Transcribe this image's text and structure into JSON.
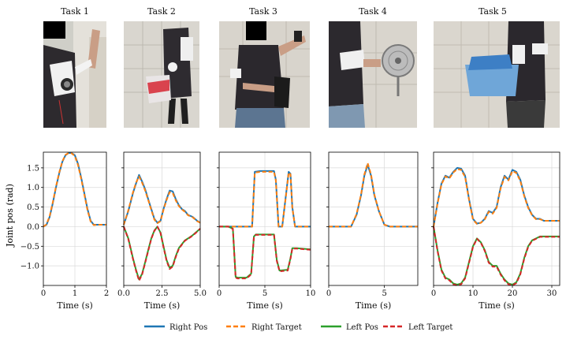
{
  "tasks": [
    {
      "title": "Task 1",
      "photo": "person raising right arm wearing arm exoskeleton, face redacted"
    },
    {
      "title": "Task 2",
      "photo": "person wearing dual-arm exoskeleton carrying a red and white box"
    },
    {
      "title": "Task 3",
      "photo": "person with one arm raised and one across the body, face redacted"
    },
    {
      "title": "Task 4",
      "photo": "person side view lifting an electric fan with exoskeleton"
    },
    {
      "title": "Task 5",
      "photo": "person carrying a blue laundry basket with exoskeleton"
    }
  ],
  "colors": {
    "right_pos": "#1f77b4",
    "right_target": "#ff7f0e",
    "left_pos": "#2ca02c",
    "left_target": "#d62728",
    "grid": "#d9d9d9"
  },
  "shared": {
    "ylabel": "Joint pos (rad)",
    "xlabel": "Time (s)",
    "ylim": [
      -1.5,
      1.9
    ],
    "yticks": [
      -1.0,
      -0.5,
      0.0,
      0.5,
      1.0,
      1.5
    ],
    "ytick_labels": [
      "−1.0",
      "−0.5",
      "0.0",
      "0.5",
      "1.0",
      "1.5"
    ]
  },
  "legend": [
    {
      "label": "Right Pos",
      "color": "#1f77b4",
      "dash": false
    },
    {
      "label": "Right Target",
      "color": "#ff7f0e",
      "dash": true
    },
    {
      "label": "Left Pos",
      "color": "#2ca02c",
      "dash": false
    },
    {
      "label": "Left Target",
      "color": "#d62728",
      "dash": true
    }
  ],
  "chart_data": [
    {
      "type": "line",
      "title": "Task 1",
      "xlabel": "Time (s)",
      "ylabel": "Joint pos (rad)",
      "xlim": [
        0,
        2
      ],
      "ylim": [
        -1.5,
        1.9
      ],
      "xticks": [
        0,
        1,
        2
      ],
      "xtick_labels": [
        "0",
        "1",
        "2"
      ],
      "grid": true,
      "series": [
        {
          "name": "Right Pos",
          "x": [
            0,
            0.1,
            0.2,
            0.3,
            0.4,
            0.5,
            0.6,
            0.7,
            0.8,
            0.9,
            1.0,
            1.1,
            1.2,
            1.3,
            1.4,
            1.5,
            1.6,
            1.7,
            1.8,
            1.9,
            2.0
          ],
          "y": [
            0,
            0.05,
            0.25,
            0.6,
            1.0,
            1.35,
            1.65,
            1.82,
            1.88,
            1.88,
            1.82,
            1.6,
            1.25,
            0.85,
            0.45,
            0.15,
            0.05,
            0.05,
            0.05,
            0.05,
            0.05
          ]
        },
        {
          "name": "Right Target",
          "x": [
            0,
            0.1,
            0.2,
            0.3,
            0.4,
            0.5,
            0.6,
            0.7,
            0.8,
            0.9,
            1.0,
            1.1,
            1.2,
            1.3,
            1.4,
            1.5,
            1.6,
            1.7,
            1.8,
            1.9,
            2.0
          ],
          "y": [
            0,
            0.06,
            0.27,
            0.62,
            1.02,
            1.37,
            1.66,
            1.83,
            1.88,
            1.87,
            1.8,
            1.57,
            1.22,
            0.82,
            0.42,
            0.13,
            0.04,
            0.05,
            0.05,
            0.05,
            0.05
          ]
        }
      ]
    },
    {
      "type": "line",
      "title": "Task 2",
      "xlabel": "Time (s)",
      "ylabel": "Joint pos (rad)",
      "xlim": [
        0,
        5
      ],
      "ylim": [
        -1.5,
        1.9
      ],
      "xticks": [
        0,
        2.5,
        5
      ],
      "xtick_labels": [
        "0.0",
        "2.5",
        "5.0"
      ],
      "grid": true,
      "series": [
        {
          "name": "Right Pos",
          "x": [
            0,
            0.3,
            0.6,
            0.8,
            1.0,
            1.2,
            1.4,
            1.6,
            1.8,
            2.0,
            2.2,
            2.4,
            2.6,
            2.8,
            3.0,
            3.2,
            3.4,
            3.6,
            3.8,
            4.0,
            4.2,
            4.5,
            4.8,
            5.0
          ],
          "y": [
            0.05,
            0.4,
            0.85,
            1.1,
            1.32,
            1.15,
            0.95,
            0.7,
            0.45,
            0.2,
            0.1,
            0.15,
            0.45,
            0.7,
            0.92,
            0.9,
            0.7,
            0.55,
            0.45,
            0.4,
            0.3,
            0.25,
            0.15,
            0.1
          ]
        },
        {
          "name": "Right Target",
          "x": [
            0,
            0.3,
            0.6,
            0.8,
            1.0,
            1.2,
            1.4,
            1.6,
            1.8,
            2.0,
            2.2,
            2.4,
            2.6,
            2.8,
            3.0,
            3.2,
            3.4,
            3.6,
            3.8,
            4.0,
            4.2,
            4.5,
            4.8,
            5.0
          ],
          "y": [
            0.05,
            0.42,
            0.87,
            1.12,
            1.28,
            1.12,
            0.92,
            0.68,
            0.43,
            0.18,
            0.09,
            0.14,
            0.43,
            0.68,
            0.88,
            0.86,
            0.67,
            0.53,
            0.44,
            0.38,
            0.29,
            0.24,
            0.14,
            0.1
          ]
        },
        {
          "name": "Left Pos",
          "x": [
            0,
            0.3,
            0.6,
            0.8,
            1.0,
            1.2,
            1.4,
            1.6,
            1.8,
            2.0,
            2.2,
            2.4,
            2.6,
            2.8,
            3.0,
            3.2,
            3.4,
            3.6,
            3.8,
            4.0,
            4.2,
            4.5,
            4.8,
            5.0
          ],
          "y": [
            0,
            -0.3,
            -0.8,
            -1.1,
            -1.35,
            -1.2,
            -0.9,
            -0.6,
            -0.3,
            -0.1,
            0,
            -0.15,
            -0.5,
            -0.85,
            -1.05,
            -1.0,
            -0.75,
            -0.55,
            -0.45,
            -0.35,
            -0.3,
            -0.22,
            -0.12,
            -0.05
          ]
        },
        {
          "name": "Left Target",
          "x": [
            0,
            0.3,
            0.6,
            0.8,
            1.0,
            1.2,
            1.4,
            1.6,
            1.8,
            2.0,
            2.2,
            2.4,
            2.6,
            2.8,
            3.0,
            3.2,
            3.4,
            3.6,
            3.8,
            4.0,
            4.2,
            4.5,
            4.8,
            5.0
          ],
          "y": [
            0,
            -0.32,
            -0.82,
            -1.12,
            -1.38,
            -1.22,
            -0.92,
            -0.62,
            -0.31,
            -0.11,
            0,
            -0.16,
            -0.52,
            -0.87,
            -1.08,
            -1.02,
            -0.77,
            -0.57,
            -0.46,
            -0.36,
            -0.31,
            -0.23,
            -0.13,
            -0.05
          ]
        }
      ]
    },
    {
      "type": "line",
      "title": "Task 3",
      "xlabel": "Time (s)",
      "ylabel": "Joint pos (rad)",
      "xlim": [
        0,
        10
      ],
      "ylim": [
        -1.5,
        1.9
      ],
      "xticks": [
        0,
        5,
        10
      ],
      "xtick_labels": [
        "0",
        "5",
        "10"
      ],
      "grid": true,
      "series": [
        {
          "name": "Right Pos",
          "x": [
            0,
            1,
            2,
            3,
            3.6,
            3.9,
            4.5,
            5.5,
            6.0,
            6.2,
            6.5,
            6.9,
            7.3,
            7.6,
            7.8,
            8.0,
            8.3,
            9,
            10
          ],
          "y": [
            0,
            0,
            0,
            0,
            0,
            1.4,
            1.42,
            1.42,
            1.42,
            1.2,
            0,
            0,
            0.8,
            1.4,
            1.35,
            0.5,
            0,
            0,
            0
          ]
        },
        {
          "name": "Right Target",
          "x": [
            0,
            1,
            2,
            3,
            3.6,
            3.9,
            4.5,
            5.5,
            6.0,
            6.2,
            6.5,
            6.9,
            7.3,
            7.6,
            7.8,
            8.0,
            8.3,
            9,
            10
          ],
          "y": [
            0,
            0,
            0,
            0,
            0,
            1.38,
            1.4,
            1.4,
            1.4,
            1.18,
            0,
            0,
            0.78,
            1.38,
            1.33,
            0.48,
            0,
            0,
            0
          ]
        },
        {
          "name": "Left Pos",
          "x": [
            0,
            1,
            1.5,
            1.8,
            2.0,
            3.0,
            3.5,
            3.8,
            4.0,
            5.0,
            6.0,
            6.3,
            6.6,
            7.5,
            7.8,
            8.0,
            8.5,
            10
          ],
          "y": [
            0,
            0,
            -0.05,
            -1.28,
            -1.3,
            -1.3,
            -1.2,
            -0.25,
            -0.2,
            -0.2,
            -0.2,
            -0.85,
            -1.12,
            -1.1,
            -0.8,
            -0.55,
            -0.55,
            -0.58
          ]
        },
        {
          "name": "Left Target",
          "x": [
            0,
            1,
            1.5,
            1.8,
            2.0,
            3.0,
            3.5,
            3.8,
            4.0,
            5.0,
            6.0,
            6.3,
            6.6,
            7.5,
            7.8,
            8.0,
            8.5,
            10
          ],
          "y": [
            0,
            0,
            -0.06,
            -1.3,
            -1.32,
            -1.32,
            -1.22,
            -0.26,
            -0.21,
            -0.21,
            -0.21,
            -0.87,
            -1.14,
            -1.12,
            -0.82,
            -0.56,
            -0.56,
            -0.59
          ]
        }
      ]
    },
    {
      "type": "line",
      "title": "Task 4",
      "xlabel": "Time (s)",
      "ylabel": "Joint pos (rad)",
      "xlim": [
        0,
        8
      ],
      "ylim": [
        -1.5,
        1.9
      ],
      "xticks": [
        0,
        5
      ],
      "xtick_labels": [
        "0",
        "5"
      ],
      "grid": true,
      "series": [
        {
          "name": "Right Pos",
          "x": [
            0,
            1,
            2,
            2.5,
            2.9,
            3.2,
            3.5,
            3.8,
            4.1,
            4.5,
            5.0,
            5.5,
            6,
            7,
            8
          ],
          "y": [
            0,
            0,
            0,
            0.3,
            0.8,
            1.3,
            1.58,
            1.3,
            0.8,
            0.4,
            0.05,
            0,
            0,
            0,
            0
          ]
        },
        {
          "name": "Right Target",
          "x": [
            0,
            1,
            2,
            2.5,
            2.9,
            3.2,
            3.5,
            3.8,
            4.1,
            4.5,
            5.0,
            5.5,
            6,
            7,
            8
          ],
          "y": [
            0,
            0,
            0,
            0.32,
            0.82,
            1.33,
            1.62,
            1.33,
            0.82,
            0.4,
            0.05,
            0,
            0,
            0,
            0
          ]
        }
      ]
    },
    {
      "type": "line",
      "title": "Task 5",
      "xlabel": "Time (s)",
      "ylabel": "Joint pos (rad)",
      "xlim": [
        0,
        32
      ],
      "ylim": [
        -1.5,
        1.9
      ],
      "xticks": [
        0,
        10,
        20,
        30
      ],
      "xtick_labels": [
        "0",
        "10",
        "20",
        "30"
      ],
      "grid": true,
      "series": [
        {
          "name": "Right Pos",
          "x": [
            0,
            1,
            2,
            3,
            4,
            5,
            6,
            7,
            8,
            9,
            10,
            11,
            12,
            13,
            14,
            15,
            16,
            17,
            18,
            19,
            20,
            21,
            22,
            23,
            24,
            25,
            26,
            27,
            28,
            29,
            30,
            31,
            32
          ],
          "y": [
            0,
            0.6,
            1.1,
            1.3,
            1.25,
            1.4,
            1.5,
            1.48,
            1.3,
            0.7,
            0.2,
            0.08,
            0.1,
            0.2,
            0.4,
            0.35,
            0.5,
            1.0,
            1.3,
            1.2,
            1.45,
            1.4,
            1.2,
            0.8,
            0.5,
            0.3,
            0.2,
            0.2,
            0.15,
            0.15,
            0.15,
            0.15,
            0.15
          ]
        },
        {
          "name": "Right Target",
          "x": [
            0,
            1,
            2,
            3,
            4,
            5,
            6,
            7,
            8,
            9,
            10,
            11,
            12,
            13,
            14,
            15,
            16,
            17,
            18,
            19,
            20,
            21,
            22,
            23,
            24,
            25,
            26,
            27,
            28,
            29,
            30,
            31,
            32
          ],
          "y": [
            0,
            0.58,
            1.08,
            1.28,
            1.23,
            1.38,
            1.47,
            1.45,
            1.27,
            0.68,
            0.18,
            0.07,
            0.1,
            0.19,
            0.38,
            0.33,
            0.48,
            0.97,
            1.27,
            1.18,
            1.42,
            1.37,
            1.17,
            0.78,
            0.48,
            0.29,
            0.19,
            0.19,
            0.15,
            0.15,
            0.15,
            0.15,
            0.15
          ]
        },
        {
          "name": "Left Pos",
          "x": [
            0,
            1,
            2,
            3,
            4,
            5,
            6,
            7,
            8,
            9,
            10,
            11,
            12,
            13,
            14,
            15,
            16,
            17,
            18,
            19,
            20,
            21,
            22,
            23,
            24,
            25,
            26,
            27,
            28,
            29,
            30,
            31,
            32
          ],
          "y": [
            0,
            -0.6,
            -1.1,
            -1.3,
            -1.35,
            -1.45,
            -1.48,
            -1.45,
            -1.3,
            -0.9,
            -0.5,
            -0.3,
            -0.4,
            -0.6,
            -0.9,
            -1.0,
            -1.0,
            -1.2,
            -1.35,
            -1.45,
            -1.48,
            -1.42,
            -1.2,
            -0.8,
            -0.5,
            -0.35,
            -0.3,
            -0.25,
            -0.25,
            -0.25,
            -0.25,
            -0.25,
            -0.25
          ]
        },
        {
          "name": "Left Target",
          "x": [
            0,
            1,
            2,
            3,
            4,
            5,
            6,
            7,
            8,
            9,
            10,
            11,
            12,
            13,
            14,
            15,
            16,
            17,
            18,
            19,
            20,
            21,
            22,
            23,
            24,
            25,
            26,
            27,
            28,
            29,
            30,
            31,
            32
          ],
          "y": [
            0,
            -0.62,
            -1.12,
            -1.32,
            -1.37,
            -1.47,
            -1.5,
            -1.47,
            -1.32,
            -0.92,
            -0.52,
            -0.31,
            -0.41,
            -0.62,
            -0.92,
            -1.02,
            -1.02,
            -1.22,
            -1.37,
            -1.47,
            -1.5,
            -1.44,
            -1.22,
            -0.82,
            -0.52,
            -0.36,
            -0.31,
            -0.26,
            -0.26,
            -0.26,
            -0.26,
            -0.26,
            -0.26
          ]
        }
      ]
    }
  ]
}
